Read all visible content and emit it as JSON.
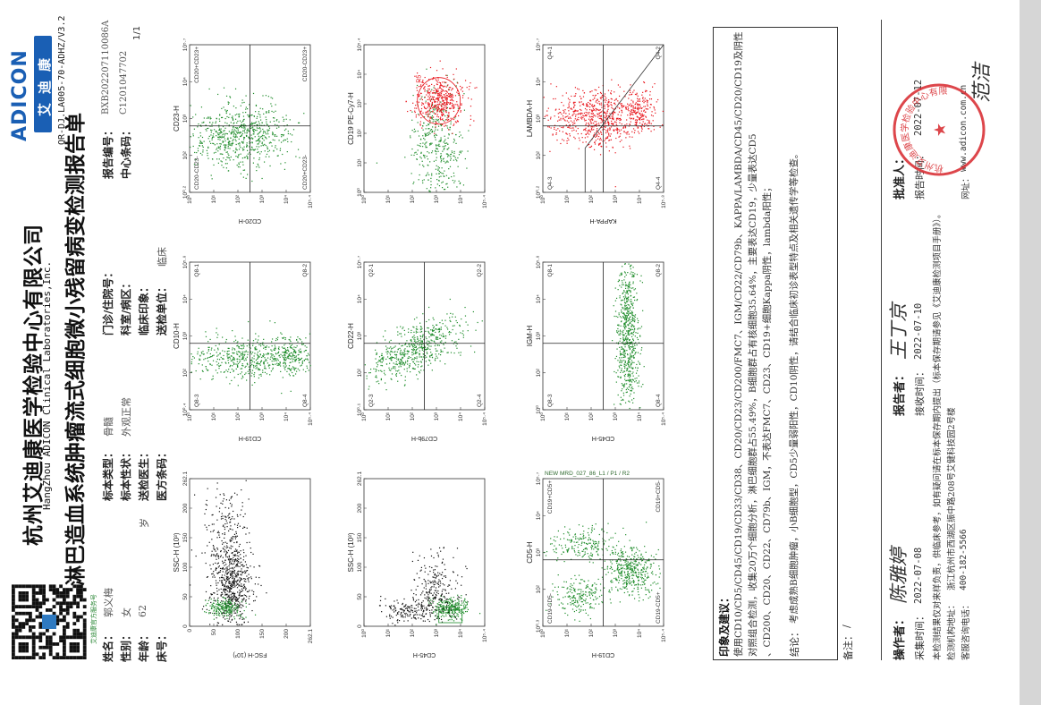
{
  "header": {
    "company_cn": "杭州艾迪康医学检验中心有限公司",
    "company_en": "HangZhou ADICON Clinical Laboratories,Inc.",
    "report_title": "淋巴造血系统肿瘤流式细胞微小残留病变检测报告单",
    "brand_cn": "艾迪康",
    "brand_en": "ADICON",
    "qr_caption": "艾迪康官方服务号",
    "doc_code": "QR-DJ.LA005-70-ADHZ/V3.2",
    "page": "1/1"
  },
  "patient": {
    "name_label": "姓名：",
    "name": "郭义梅",
    "sex_label": "性别：",
    "sex": "女",
    "age_label": "年龄：",
    "age": "62",
    "age_unit": "岁",
    "bed_label": "床号：",
    "bed": "",
    "specimen_type_label": "标本类型：",
    "specimen_type": "骨髓",
    "specimen_status_label": "标本性状：",
    "specimen_status": "外观正常",
    "doctor_label": "送检医生：",
    "doctor": "",
    "barcode_label": "医方条码：",
    "barcode": "",
    "outpatient_label": "门诊/住院号：",
    "outpatient": "",
    "dept_label": "科室/病区：",
    "dept": "",
    "clinical_label": "临床印象：",
    "clinical": "",
    "unit_label": "送检单位：",
    "unit": "临床",
    "report_no_label": "报告编号：",
    "report_no": "BXB202207110086A",
    "center_code_label": "中心条码：",
    "center_code": "C1201047702"
  },
  "plots": [
    {
      "title": "SSC-H (10³)",
      "y_axis": "FSC-H (10³)",
      "x_ticks": [
        "0",
        "50",
        "100",
        "150",
        "200",
        "262.1"
      ],
      "y_ticks": [
        "0",
        "50",
        "100",
        "150",
        "200",
        "262.1"
      ],
      "quads": []
    },
    {
      "title": "CD10-H",
      "y_axis": "CD19-H",
      "x_ticks": [
        "10⁰·⁴",
        "10²",
        "10³",
        "10⁴",
        "10⁵·⁸"
      ],
      "y_ticks": [
        "10⁰",
        "10¹",
        "10²",
        "10³",
        "10⁴",
        "10⁵·⁴"
      ],
      "quads": [
        "Q8-1",
        "Q8-2",
        "Q8-3",
        "Q8-4"
      ]
    },
    {
      "title": "CD23-H",
      "y_axis": "CD20-H",
      "x_ticks": [
        "10⁰·²",
        "10²",
        "10³",
        "10⁴",
        "10⁵·⁷"
      ],
      "y_ticks": [
        "10⁰",
        "10¹",
        "10²",
        "10³",
        "10⁴",
        "10⁵·⁴"
      ],
      "quads": [
        "CD20+CD23+",
        "CD20-CD23+",
        "CD20-CD23-",
        "CD20+CD23-"
      ]
    },
    {
      "title": "SSC-H (10³)",
      "y_axis": "CD45-H",
      "x_ticks": [
        "0",
        "50",
        "100",
        "150",
        "200",
        "262.1"
      ],
      "y_ticks": [
        "10⁰",
        "10¹",
        "10²",
        "10³",
        "10⁴",
        "10⁵·⁴"
      ],
      "quads": [],
      "gate": "R2"
    },
    {
      "title": "CD22-H",
      "y_axis": "CD79b-H",
      "x_ticks": [
        "10⁰·¹",
        "10²",
        "10³",
        "10⁴",
        "10⁵·⁷"
      ],
      "y_ticks": [
        "10⁰",
        "10¹",
        "10²",
        "10³",
        "10⁴",
        "10⁵·⁴"
      ],
      "quads": [
        "Q2-1",
        "Q2-2",
        "Q2-3",
        "Q2-4"
      ]
    },
    {
      "title": "CD19 PE-Cy7-H",
      "y_axis": "",
      "x_ticks": [
        "10⁰",
        "10¹",
        "10²",
        "10³",
        "10⁴",
        "10⁵·⁴"
      ],
      "y_ticks": [
        "10⁰",
        "10¹",
        "10²",
        "10³",
        "10⁴",
        "10⁵·⁴"
      ],
      "quads": [],
      "gate": "R5"
    },
    {
      "title": "CD5-H",
      "y_axis": "CD19-H",
      "x_ticks": [
        "10⁰·³",
        "10²",
        "10³",
        "10⁴",
        "10⁵·⁷"
      ],
      "y_ticks": [
        "10⁰",
        "10¹",
        "10²",
        "10³",
        "10⁴",
        "10⁵·⁴"
      ],
      "quads": [
        "CD19+CD5+",
        "CD19+CD5-",
        "CD19-CD5-",
        "CD19-CD5+"
      ],
      "subtitle": "NEW MRD_027_86_L1 / P1 / R2"
    },
    {
      "title": "IGM-H",
      "y_axis": "CD45-H",
      "x_ticks": [
        "10⁰",
        "10²",
        "10³",
        "10⁴",
        "10⁵·⁸"
      ],
      "y_ticks": [
        "10⁰",
        "10¹",
        "10²",
        "10³",
        "10⁴",
        "10⁵·⁴"
      ],
      "quads": [
        "Q8-1",
        "Q8-2",
        "Q8-3",
        "Q8-4"
      ]
    },
    {
      "title": "LAMBDA-H",
      "y_axis": "KAPPA-H",
      "x_ticks": [
        "10⁰·²",
        "10²",
        "10³",
        "10⁴",
        "10⁵·⁷"
      ],
      "y_ticks": [
        "10⁰",
        "10¹",
        "10²",
        "10³",
        "10⁴",
        "10⁵·⁸"
      ],
      "quads": [
        "Q4-1",
        "Q4-2",
        "Q4-3",
        "Q4-4"
      ]
    }
  ],
  "impression": {
    "heading": "印象及建议：",
    "line1": "使用CD10/CD5/CD45/CD19/CD33/CD38、CD20/CD23/CD200/FMC7、IGM/CD22/CD79b、KAPPA/LAMBDA/CD45/CD20/CD19及阴性",
    "line2": "对照组合检测，收集20万个细胞分析，淋巴细胞群占55.49%，B细胞群占有核细胞35.64%，主要表达CD19，少量表达CD5",
    "line3": "、CD200、CD20、CD22、CD79b、IGM，不表达FMC7、CD23、CD19+细胞Kappa阴性，lambda阳性；",
    "conclusion_label": "结论：",
    "conclusion": "考虑成熟B细胞肿瘤，小B细胞型，CD5少量弱阳性，CD10阴性，请结合临床初诊表型特点及相关遗传学等检查。",
    "remark_label": "备注：",
    "remark": "/"
  },
  "footer": {
    "operator_label": "操作者：",
    "operator_sig": "陈雅婷",
    "reporter_label": "报告者：",
    "reporter_sig": "王丁京",
    "approver_label": "批准人：",
    "approver_sig": "范洁",
    "collect_time_label": "采集时间：",
    "collect_time": "2022-07-08",
    "receive_time_label": "接收时间：",
    "receive_time": "2022-07-10",
    "report_time_label": "报告时间：",
    "report_time": "2022-07-12",
    "disclaimer": "本检测结果仅对来样负责，供临床参考，如有疑问请在标本保存期内提出（标本保存期请参见《艾迪康检测项目手册》）。",
    "address_label": "检测机构地址：",
    "address": "浙江杭州市西湖区振中路208号艾健科技园2号楼",
    "hotline_label": "客服咨询电话：",
    "hotline": "400-182-5566",
    "website_label": "网址：",
    "website": "www.adicon.com.cn",
    "stamp_text": "杭州艾迪康医学检验中心有限公司 报告专用章"
  }
}
